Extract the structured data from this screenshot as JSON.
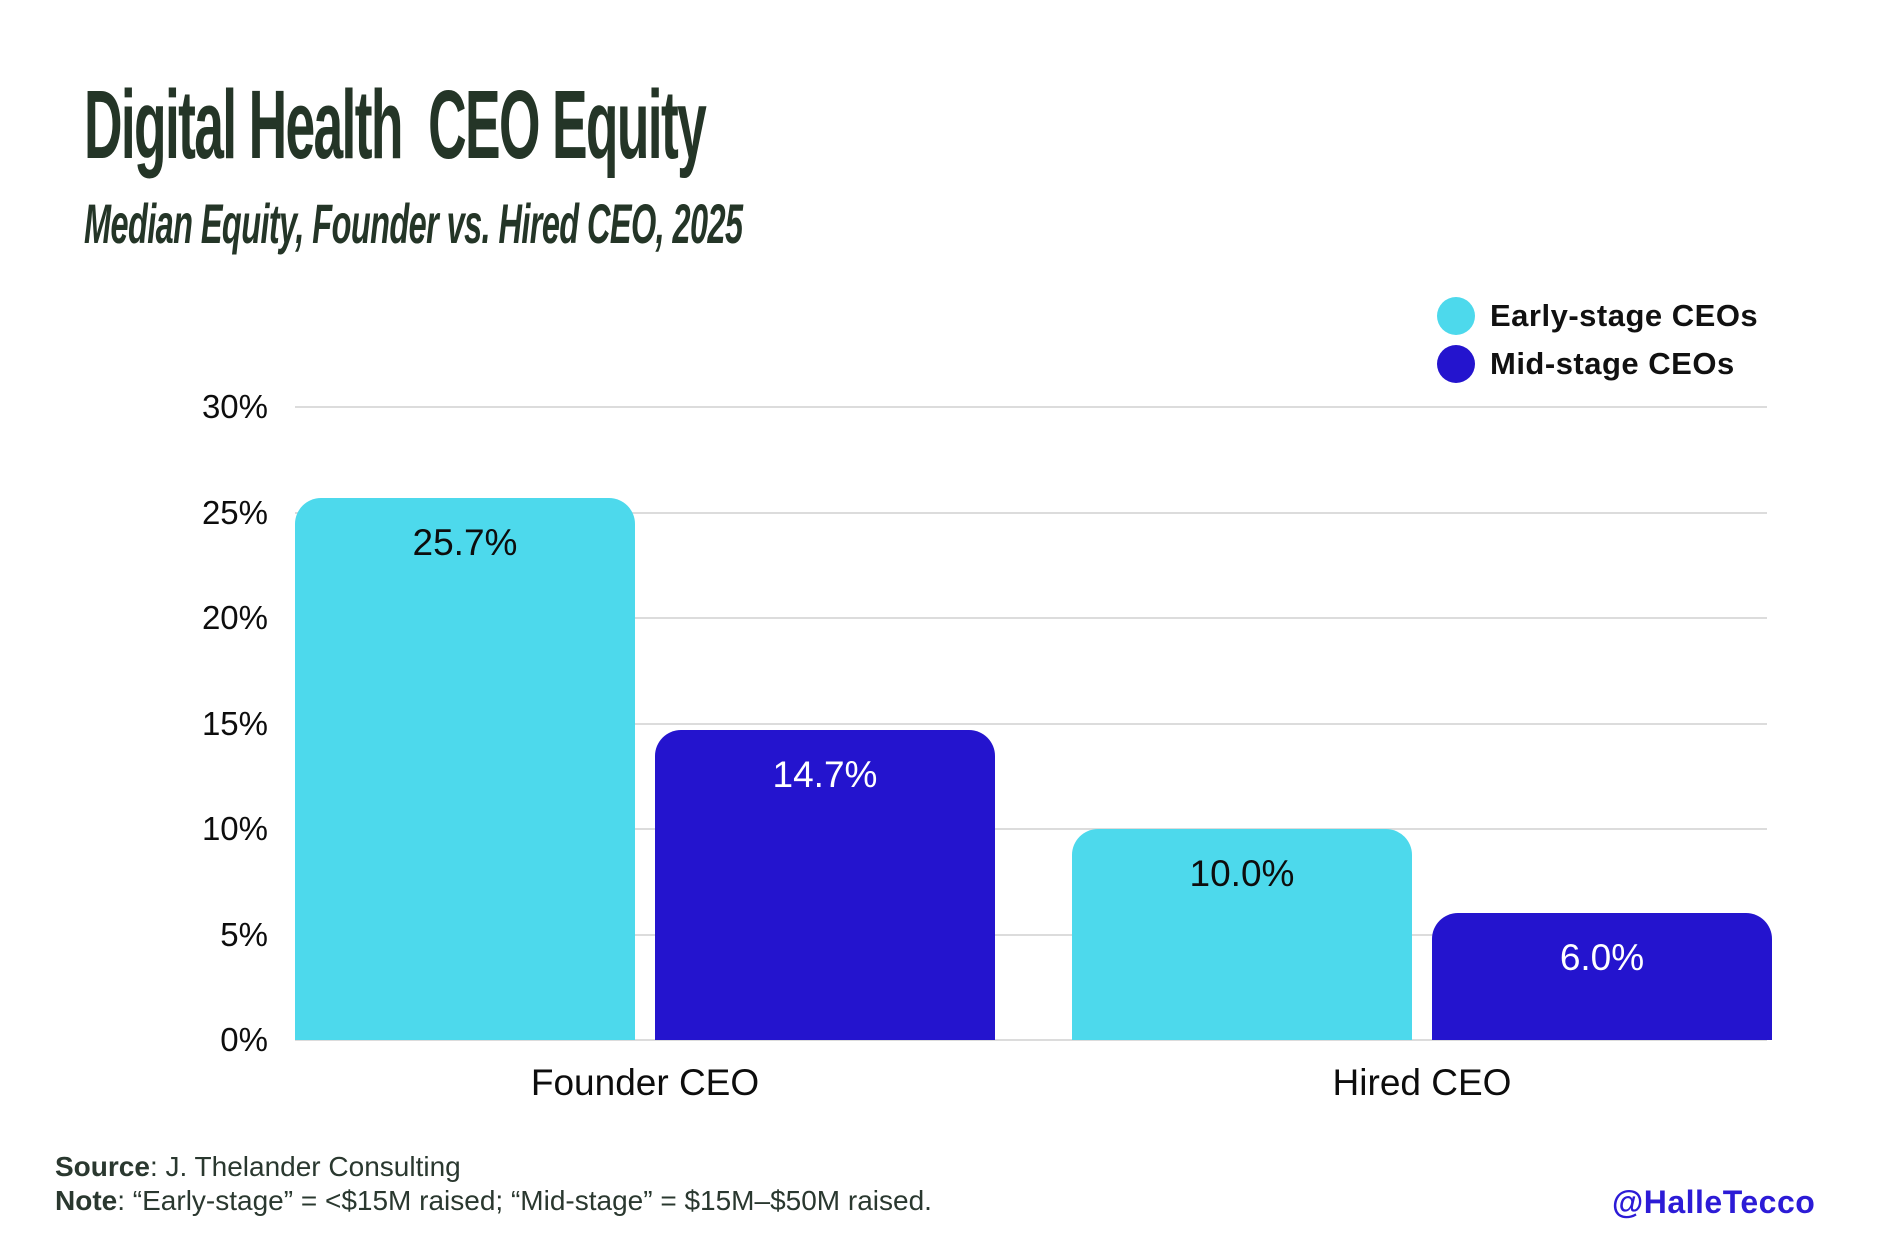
{
  "title": "Digital Health  CEO Equity",
  "subtitle": "Median Equity, Founder vs. Hired CEO, 2025",
  "legend": [
    {
      "label": "Early-stage CEOs",
      "color": "#4dd9ec"
    },
    {
      "label": "Mid-stage CEOs",
      "color": "#2414ce"
    }
  ],
  "chart_data": {
    "type": "bar",
    "categories": [
      "Founder CEO",
      "Hired CEO"
    ],
    "series": [
      {
        "name": "Early-stage CEOs",
        "color": "#4dd9ec",
        "label_color": "#0d0d0d",
        "values": [
          25.7,
          10.0
        ]
      },
      {
        "name": "Mid-stage CEOs",
        "color": "#2414ce",
        "label_color": "#ffffff",
        "values": [
          14.7,
          6.0
        ]
      }
    ],
    "value_label_suffix": "%",
    "ylim": [
      0,
      30
    ],
    "ytick_step": 5,
    "ytick_suffix": "%",
    "grid": true,
    "legend_position": "top-right"
  },
  "footer": {
    "source_label": "Source",
    "source_text": ": J. Thelander Consulting",
    "note_label": "Note",
    "note_text": ": “Early-stage” = <$15M raised; “Mid-stage” = $15M–$50M raised."
  },
  "attribution": "@HalleTecco",
  "colors": {
    "title": "#243527",
    "gridline": "#dcdcdc",
    "background": "#ffffff",
    "attribution": "#2c1bd6"
  }
}
